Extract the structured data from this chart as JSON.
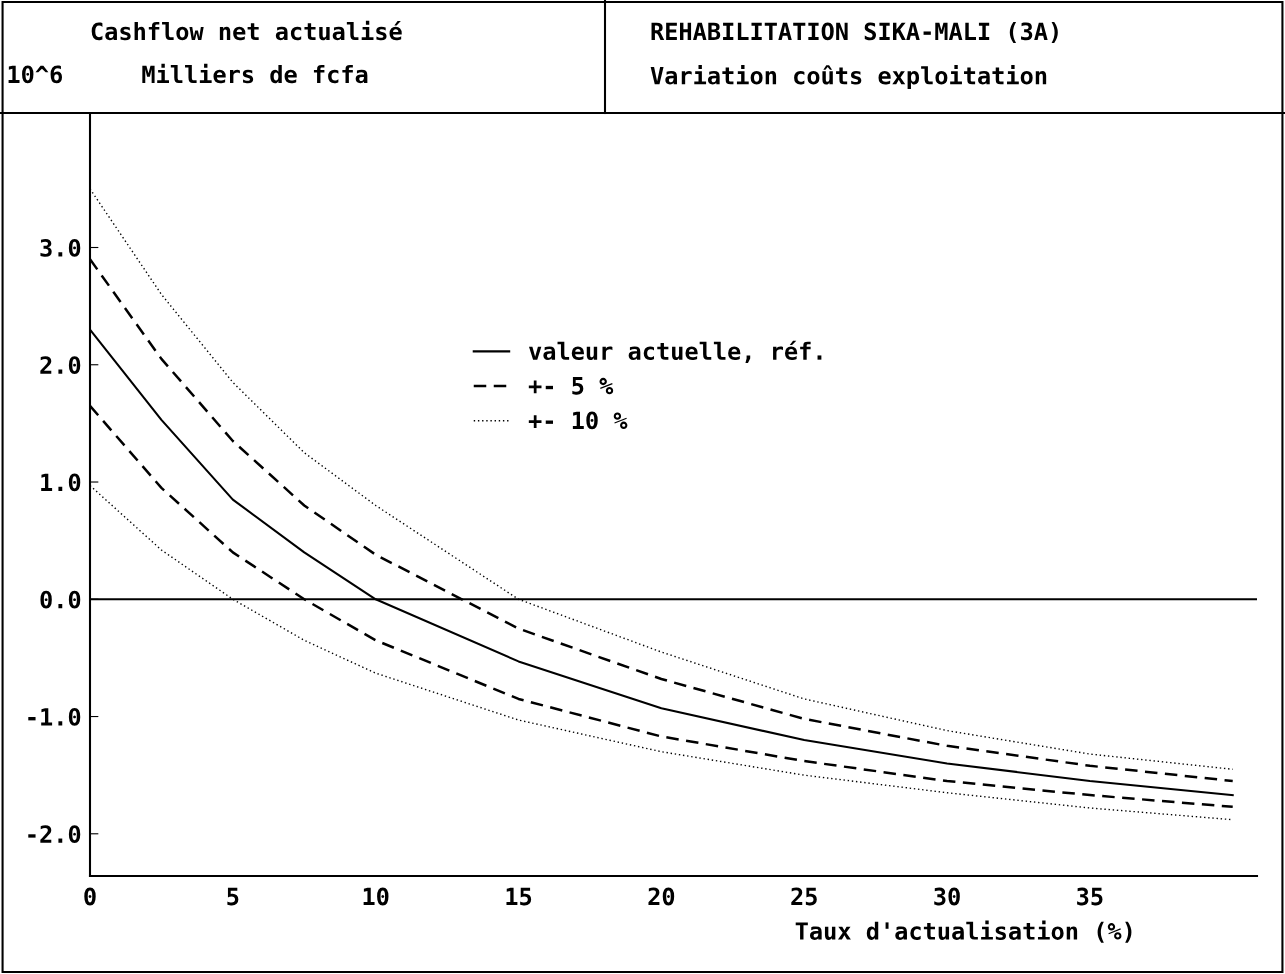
{
  "chart_data": {
    "type": "line",
    "title": "REHABILITATION SIKA-MALI (3A)",
    "subtitle": "Variation coûts exploitation",
    "ylabel": "Cashflow net actualisé",
    "annotations": [
      "10^6",
      "Milliers de fcfa"
    ],
    "xlabel": "Taux d'actualisation (%)",
    "x": [
      0,
      2.5,
      5,
      7.5,
      10,
      15,
      20,
      25,
      30,
      35,
      40
    ],
    "series": [
      {
        "name": "valeur actuelle, réf.",
        "color": "#000000",
        "line_style": "solid",
        "values": [
          2.3,
          1.53,
          0.85,
          0.4,
          0.0,
          -0.53,
          -0.93,
          -1.2,
          -1.4,
          -1.55,
          -1.67
        ]
      },
      {
        "name": "+- 5 %",
        "color": "#000000",
        "line_style": "dashed",
        "values": [
          2.9,
          2.05,
          1.35,
          0.8,
          0.38,
          -0.25,
          -0.68,
          -1.02,
          -1.25,
          -1.42,
          -1.55
        ]
      },
      {
        "color": "#000000",
        "line_style": "dashed",
        "values": [
          1.65,
          0.95,
          0.4,
          0.0,
          -0.35,
          -0.85,
          -1.17,
          -1.38,
          -1.55,
          -1.67,
          -1.77
        ]
      },
      {
        "name": "+- 10 %",
        "color": "#000000",
        "line_style": "dotted",
        "values": [
          3.5,
          2.6,
          1.85,
          1.25,
          0.8,
          0.0,
          -0.45,
          -0.85,
          -1.12,
          -1.32,
          -1.45
        ]
      },
      {
        "color": "#000000",
        "line_style": "dotted",
        "values": [
          0.97,
          0.42,
          0.0,
          -0.35,
          -0.63,
          -1.03,
          -1.3,
          -1.5,
          -1.65,
          -1.78,
          -1.88
        ]
      }
    ],
    "xlim": [
      0,
      40.85
    ],
    "ylim": [
      -2.36,
      4.13
    ],
    "xticks": [
      0,
      5,
      10,
      15,
      20,
      25,
      30,
      35
    ],
    "yticks": [
      {
        "value": -2,
        "label": "-2.0"
      },
      {
        "value": -1,
        "label": "-1.0"
      },
      {
        "value": 0,
        "label": "0.0"
      },
      {
        "value": 1,
        "label": "1.0"
      },
      {
        "value": 2,
        "label": "2.0"
      },
      {
        "value": 3,
        "label": "3.0"
      }
    ],
    "ref_lines": [
      {
        "axis": "y",
        "value": 0,
        "color": "#000000",
        "line_style": "solid"
      }
    ],
    "grid": false,
    "legend": "top",
    "marker": "none"
  }
}
